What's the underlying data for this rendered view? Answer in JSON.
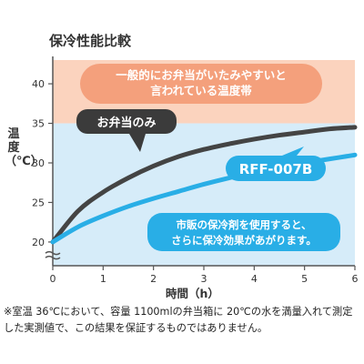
{
  "title": "保冷性能比較",
  "ylabel": "温度（℃）",
  "xlabel": "時間（h）",
  "footnote": "※室温 36℃において、容量 1100mlの弁当箱に 20℃の水を満量入れて測定した実測値で、この結果を保証するものではありません。",
  "zone_label": [
    "一般的にお弁当がいたみやすいと",
    "言われている温度帯"
  ],
  "callouts": {
    "bento_only": "お弁当のみ",
    "product": "RFF-007B",
    "product_note": [
      "市販の保冷剤を使用すると、",
      "さらに保冷効果があがります。"
    ]
  },
  "colors": {
    "danger_zone": "#fbd3be",
    "cool_zone": "#d6ecf9",
    "bento_line": "#444444",
    "product_line": "#29aee6",
    "zone_bubble": "#f4a07c"
  },
  "chart_data": {
    "type": "line",
    "x": [
      0,
      0.5,
      1,
      1.5,
      2,
      2.5,
      3,
      3.5,
      4,
      4.5,
      5,
      5.5,
      6
    ],
    "series": [
      {
        "values": [
          20,
          23.9,
          26.3,
          28.1,
          29.6,
          30.8,
          31.7,
          32.4,
          33.0,
          33.5,
          33.9,
          34.3,
          34.5
        ]
      },
      {
        "values": [
          20,
          21.9,
          23.3,
          24.5,
          25.5,
          26.4,
          27.3,
          28.1,
          28.8,
          29.5,
          30.0,
          30.5,
          31.0
        ]
      }
    ],
    "xticks": [
      "0",
      "1",
      "2",
      "3",
      "4",
      "5",
      "6"
    ],
    "yticks": [
      "20",
      "25",
      "30",
      "35",
      "40"
    ],
    "ylim": [
      17,
      43
    ],
    "xlim": [
      0,
      6
    ],
    "bands": [
      {
        "name": "danger",
        "from": 35,
        "to": 43
      },
      {
        "name": "cool",
        "from": 17,
        "to": 35
      }
    ],
    "grid": false
  }
}
